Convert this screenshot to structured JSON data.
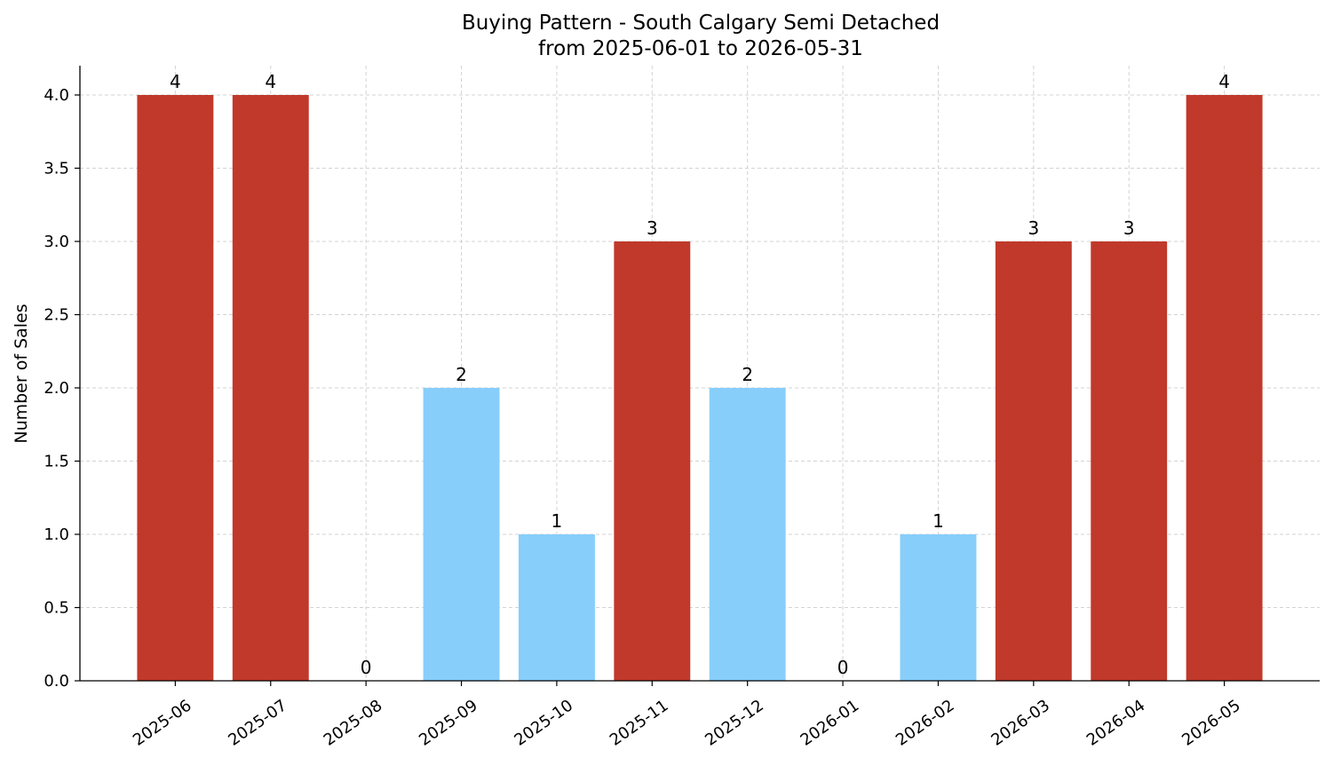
{
  "chart_data": {
    "type": "bar",
    "title": "Buying Pattern - South Calgary Semi Detached",
    "subtitle": "from 2025-06-01 to 2026-05-31",
    "xlabel": "",
    "ylabel": "Number of Sales",
    "ylim": [
      0,
      4.2
    ],
    "yticks": [
      "0.0",
      "0.5",
      "1.0",
      "1.5",
      "2.0",
      "2.5",
      "3.0",
      "3.5",
      "4.0"
    ],
    "categories": [
      "2025-06",
      "2025-07",
      "2025-08",
      "2025-09",
      "2025-10",
      "2025-11",
      "2025-12",
      "2026-01",
      "2026-02",
      "2026-03",
      "2026-04",
      "2026-05"
    ],
    "values": [
      4,
      4,
      0,
      2,
      1,
      3,
      2,
      0,
      1,
      3,
      3,
      4
    ],
    "bar_colors": [
      "#c0392b",
      "#c0392b",
      "#87cefa",
      "#87cefa",
      "#87cefa",
      "#c0392b",
      "#87cefa",
      "#87cefa",
      "#87cefa",
      "#c0392b",
      "#c0392b",
      "#c0392b"
    ],
    "grid": true,
    "x_tick_rotation_deg": 35
  }
}
